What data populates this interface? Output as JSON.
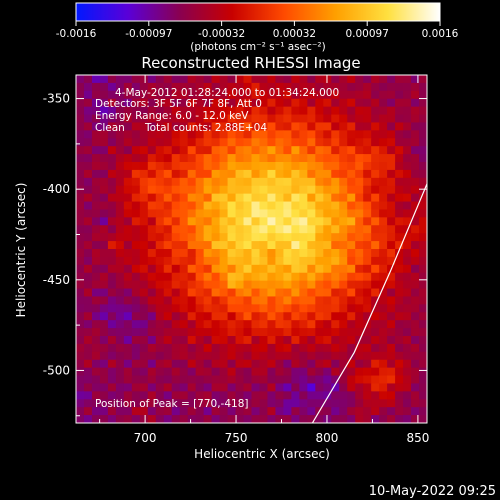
{
  "chart_data": {
    "type": "heatmap",
    "title": "Reconstructed RHESSI Image",
    "xlabel": "Heliocentric X (arcsec)",
    "ylabel": "Heliocentric Y (arcsec)",
    "xlim": [
      662,
      855
    ],
    "ylim": [
      -529,
      -337
    ],
    "x_ticks": [
      700,
      750,
      800,
      850
    ],
    "y_ticks": [
      -350,
      -400,
      -450,
      -500
    ],
    "colorbar": {
      "ticks": [
        "-0.0016",
        "-0.00097",
        "-0.00032",
        "0.00032",
        "0.00097",
        "0.0016"
      ],
      "unit_label": "(photons cm⁻² s⁻¹ asec⁻²)",
      "min": -0.0016,
      "max": 0.0016,
      "colormap": [
        "#0018ff",
        "#5a00d8",
        "#8a0050",
        "#c80000",
        "#ff4a00",
        "#ffa000",
        "#ffe040",
        "#ffffff"
      ]
    },
    "annotations": {
      "time_range": "4-May-2012 01:28:24.000 to 01:34:24.000",
      "detectors": "Detectors: 3F 5F 6F 7F 8F, Att 0",
      "energy_range": "Energy Range: 6.0 - 12.0 keV",
      "algorithm": "Clean",
      "total_counts": "Total counts: 2.88E+04",
      "peak_position": "Position of Peak = [770,-418]"
    },
    "peak": {
      "x": 770,
      "y": -418
    },
    "limb_curve": [
      {
        "x": 855,
        "y": -397
      },
      {
        "x": 835,
        "y": -445
      },
      {
        "x": 815,
        "y": -490
      },
      {
        "x": 792,
        "y": -529
      }
    ]
  },
  "footer": {
    "timestamp": "10-May-2022 09:25"
  }
}
